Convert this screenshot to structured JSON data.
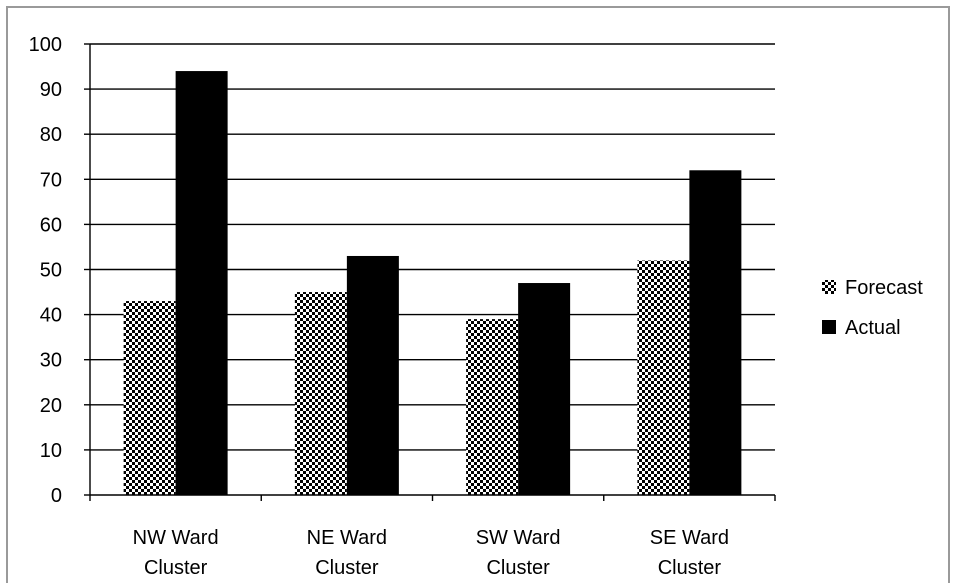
{
  "chart_data": {
    "type": "bar",
    "title": "",
    "xlabel": "",
    "ylabel": "",
    "categories": [
      "NW Ward Cluster",
      "NE Ward Cluster",
      "SW Ward Cluster",
      "SE Ward Cluster"
    ],
    "category_lines": [
      [
        "NW Ward",
        "Cluster"
      ],
      [
        "NE Ward",
        "Cluster"
      ],
      [
        "SW Ward",
        "Cluster"
      ],
      [
        "SE Ward",
        "Cluster"
      ]
    ],
    "series": [
      {
        "name": "Forecast",
        "values": [
          43,
          45,
          39,
          52
        ],
        "fill": "checkered"
      },
      {
        "name": "Actual",
        "values": [
          94,
          53,
          47,
          72
        ],
        "fill": "#000000"
      }
    ],
    "ylim": [
      0,
      100
    ],
    "yticks": [
      0,
      10,
      20,
      30,
      40,
      50,
      60,
      70,
      80,
      90,
      100
    ],
    "grid": true,
    "legend_position": "right"
  }
}
